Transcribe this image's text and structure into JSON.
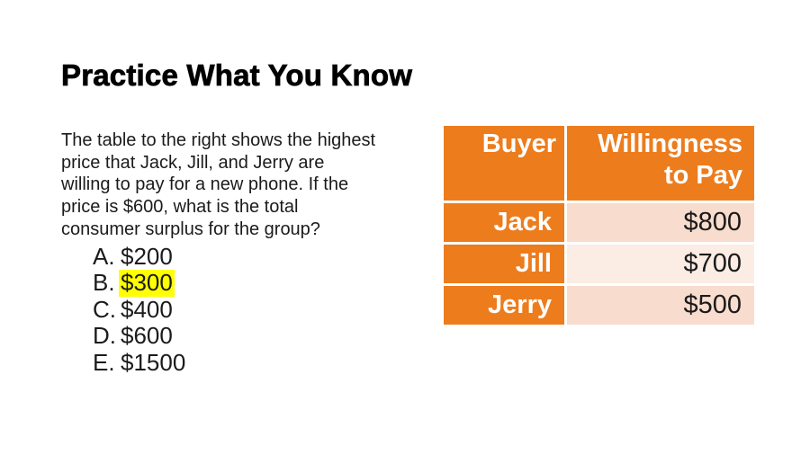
{
  "slide": {
    "title": "Practice What You Know",
    "question_lines": [
      "The table to the right shows the highest",
      "price that Jack, Jill, and Jerry are",
      "willing to pay for a new phone. If the",
      "price is $600, what is the total",
      "consumer surplus for the group?"
    ],
    "choices": [
      {
        "letter": "A.",
        "text": "$200",
        "highlighted": false
      },
      {
        "letter": "B.",
        "text": "$300",
        "highlighted": true
      },
      {
        "letter": "C.",
        "text": "$400",
        "highlighted": false
      },
      {
        "letter": "D.",
        "text": "$600",
        "highlighted": false
      },
      {
        "letter": "E.",
        "text": "$1500",
        "highlighted": false
      }
    ],
    "highlight_color": "#ffff00"
  },
  "table": {
    "headers": [
      "Buyer",
      "Willingness to Pay"
    ],
    "rows": [
      {
        "buyer": "Jack",
        "willingness_to_pay": "$800"
      },
      {
        "buyer": "Jill",
        "willingness_to_pay": "$700"
      },
      {
        "buyer": "Jerry",
        "willingness_to_pay": "$500"
      }
    ],
    "colors": {
      "header_bg": "#ed7c1d",
      "header_text": "#ffffff",
      "row_band_dark": "#f8dcce",
      "row_band_light": "#fbece4",
      "value_text": "#1a1a1a"
    }
  }
}
